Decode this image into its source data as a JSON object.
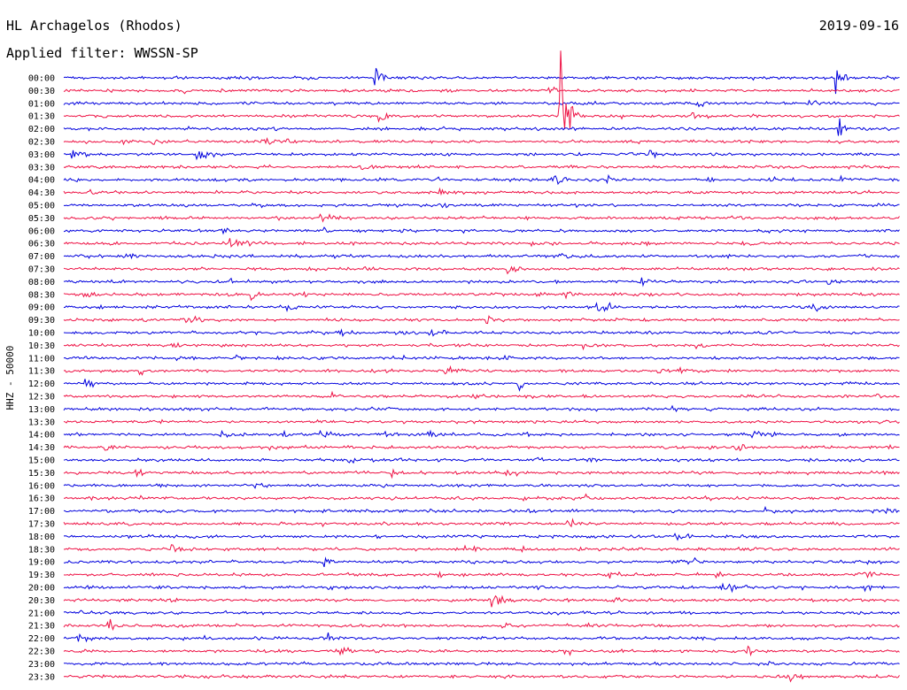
{
  "header": {
    "station": "HL Archagelos (Rhodos)",
    "date": "2019-09-16",
    "filter_prefix": "Applied filter:",
    "filter_name": "WWSSN-SP"
  },
  "chart_data": {
    "type": "line",
    "title": "HL Archagelos (Rhodos)",
    "ylabel": "HHZ - 50000",
    "time_labels": [
      "00:00",
      "00:30",
      "01:00",
      "01:30",
      "02:00",
      "02:30",
      "03:00",
      "03:30",
      "04:00",
      "04:30",
      "05:00",
      "05:30",
      "06:00",
      "06:30",
      "07:00",
      "07:30",
      "08:00",
      "08:30",
      "09:00",
      "09:30",
      "10:00",
      "10:30",
      "11:00",
      "11:30",
      "12:00",
      "12:30",
      "13:00",
      "13:30",
      "14:00",
      "14:30",
      "15:00",
      "15:30",
      "16:00",
      "16:30",
      "17:00",
      "17:30",
      "18:00",
      "18:30",
      "19:00",
      "19:30",
      "20:00",
      "20:30",
      "21:00",
      "21:30",
      "22:00",
      "22:30",
      "23:00",
      "23:30"
    ],
    "colors": [
      "#0000dd",
      "#ee1144"
    ],
    "grid": false,
    "major_events": [
      {
        "row": "01:30",
        "minute": 17.8,
        "amplitude": 6.0
      },
      {
        "row": "01:30",
        "minute": 11.3,
        "amplitude": 0.6
      },
      {
        "row": "00:00",
        "minute": 11.2,
        "amplitude": 1.0
      },
      {
        "row": "00:00",
        "minute": 27.7,
        "amplitude": 2.6
      },
      {
        "row": "02:00",
        "minute": 27.8,
        "amplitude": 0.8
      },
      {
        "row": "04:00",
        "minute": 19.5,
        "amplitude": 0.6
      },
      {
        "row": "14:30",
        "minute": 24.1,
        "amplitude": 0.6
      }
    ]
  }
}
